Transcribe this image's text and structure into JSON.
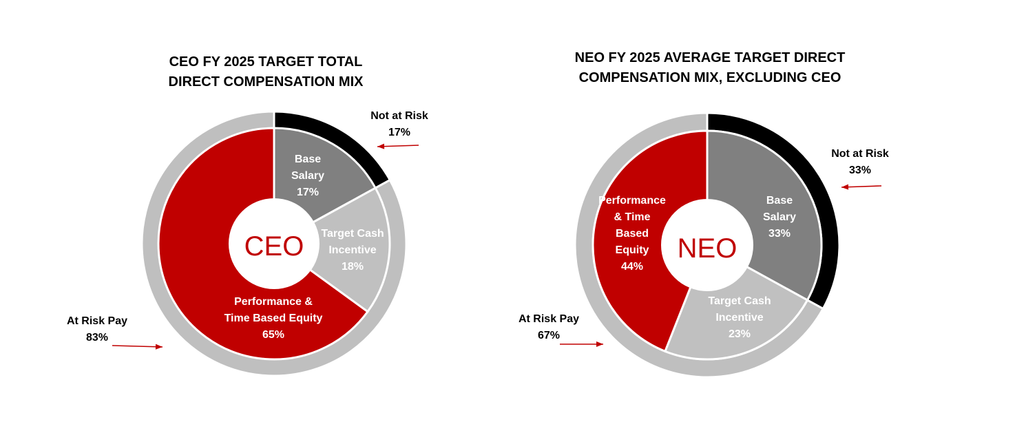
{
  "colors": {
    "base_salary": "#808080",
    "target_cash_incentive": "#c0c0c0",
    "equity": "#c00000",
    "not_at_risk": "#000000",
    "at_risk": "#bfbfbf",
    "center_text": "#c00000",
    "arrow": "#c00000"
  },
  "chart_data": [
    {
      "type": "pie",
      "variant": "nested-donut",
      "title_lines": [
        "CEO FY 2025 TARGET TOTAL",
        "DIRECT COMPENSATION MIX"
      ],
      "center_label": "CEO",
      "inner": [
        {
          "label_lines": [
            "Base",
            "Salary"
          ],
          "value": 17,
          "value_label": "17%",
          "color_key": "base_salary",
          "text_color": "#ffffff"
        },
        {
          "label_lines": [
            "Target Cash",
            "Incentive"
          ],
          "value": 18,
          "value_label": "18%",
          "color_key": "target_cash_incentive",
          "text_color": "#ffffff"
        },
        {
          "label_lines": [
            "Performance &",
            "Time Based Equity"
          ],
          "value": 65,
          "value_label": "65%",
          "color_key": "equity",
          "text_color": "#ffffff"
        }
      ],
      "outer": [
        {
          "label": "Not at Risk",
          "value": 17,
          "value_label": "17%",
          "color_key": "not_at_risk"
        },
        {
          "label": "At Risk Pay",
          "value": 83,
          "value_label": "83%",
          "color_key": "at_risk"
        }
      ]
    },
    {
      "type": "pie",
      "variant": "nested-donut",
      "title_lines": [
        "NEO FY 2025 AVERAGE TARGET DIRECT",
        "COMPENSATION MIX, EXCLUDING CEO"
      ],
      "center_label": "NEO",
      "inner": [
        {
          "label_lines": [
            "Base",
            "Salary"
          ],
          "value": 33,
          "value_label": "33%",
          "color_key": "base_salary",
          "text_color": "#ffffff"
        },
        {
          "label_lines": [
            "Target Cash",
            "Incentive"
          ],
          "value": 23,
          "value_label": "23%",
          "color_key": "target_cash_incentive",
          "text_color": "#ffffff"
        },
        {
          "label_lines": [
            "Performance",
            "& Time",
            "Based",
            "Equity"
          ],
          "value": 44,
          "value_label": "44%",
          "color_key": "equity",
          "text_color": "#ffffff"
        }
      ],
      "outer": [
        {
          "label": "Not at Risk",
          "value": 33,
          "value_label": "33%",
          "color_key": "not_at_risk"
        },
        {
          "label": "At Risk Pay",
          "value": 67,
          "value_label": "67%",
          "color_key": "at_risk"
        }
      ]
    }
  ]
}
